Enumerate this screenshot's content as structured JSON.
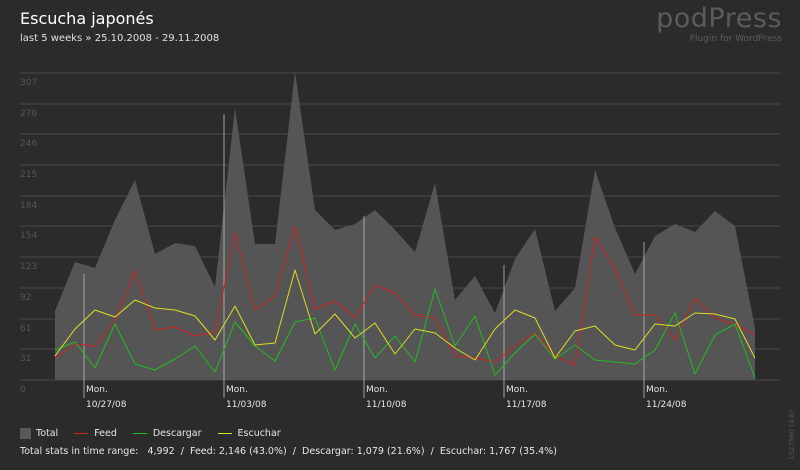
{
  "header": {
    "title": "Escucha japonés",
    "subtitle": "last 5 weeks » 25.10.2008 - 29.11.2008",
    "brand": "podPress",
    "brand_sub": "Plugin for WordPress",
    "side_note": "1327590 (4.6)"
  },
  "legend": {
    "items": [
      {
        "label": "Total",
        "color": "#5a5a5a",
        "kind": "box"
      },
      {
        "label": "Feed",
        "color": "#cc2222",
        "kind": "line"
      },
      {
        "label": "Descargar",
        "color": "#22bb22",
        "kind": "line"
      },
      {
        "label": "Escuchar",
        "color": "#dddd22",
        "kind": "line"
      }
    ]
  },
  "totals": {
    "label": "Total stats in time range:",
    "total": "4,992",
    "feed": "Feed: 2,146 (43.0%)",
    "descargar": "Descargar: 1,079 (21.6%)",
    "escuchar": "Escuchar: 1,767 (35.4%)",
    "sep": "/"
  },
  "chart_data": {
    "type": "area",
    "ylim": [
      0,
      320
    ],
    "y_ticks": [
      "0",
      "31",
      "61",
      "92",
      "123",
      "154",
      "184",
      "215",
      "246",
      "276",
      "307"
    ],
    "x_week_labels": [
      {
        "day": "Mon.",
        "date": "10/27/08",
        "index": 2
      },
      {
        "day": "Mon.",
        "date": "11/03/08",
        "index": 9
      },
      {
        "day": "Mon.",
        "date": "11/10/08",
        "index": 16
      },
      {
        "day": "Mon.",
        "date": "11/17/08",
        "index": 23
      },
      {
        "day": "Mon.",
        "date": "11/24/08",
        "index": 30
      }
    ],
    "grid": true,
    "legend_position": "bottom",
    "series": [
      {
        "name": "Total",
        "color": "#555555",
        "values": [
          69,
          118,
          112,
          160,
          200,
          126,
          137,
          134,
          93,
          272,
          136,
          136,
          308,
          170,
          150,
          156,
          170,
          150,
          128,
          197,
          80,
          104,
          67,
          121,
          151,
          69,
          92,
          210,
          152,
          106,
          144,
          156,
          148,
          169,
          154,
          52
        ]
      },
      {
        "name": "Feed",
        "color": "#cc2222",
        "values": [
          22,
          36,
          34,
          60,
          109,
          50,
          53,
          44,
          48,
          147,
          70,
          84,
          154,
          71,
          79,
          62,
          95,
          87,
          65,
          62,
          24,
          22,
          18,
          34,
          47,
          24,
          15,
          143,
          111,
          65,
          65,
          40,
          82,
          62,
          56,
          45
        ]
      },
      {
        "name": "Descargar",
        "color": "#22bb22",
        "values": [
          30,
          38,
          12,
          56,
          16,
          10,
          21,
          34,
          8,
          58,
          34,
          19,
          58,
          62,
          10,
          56,
          22,
          44,
          18,
          91,
          34,
          64,
          5,
          27,
          46,
          21,
          35,
          20,
          18,
          16,
          30,
          67,
          6,
          45,
          56,
          2
        ]
      },
      {
        "name": "Escuchar",
        "color": "#dddd22",
        "values": [
          24,
          51,
          70,
          63,
          80,
          72,
          70,
          64,
          40,
          74,
          35,
          37,
          110,
          46,
          66,
          42,
          57,
          26,
          51,
          47,
          32,
          20,
          51,
          70,
          62,
          22,
          49,
          54,
          35,
          30,
          56,
          54,
          67,
          66,
          61,
          22
        ]
      }
    ]
  }
}
